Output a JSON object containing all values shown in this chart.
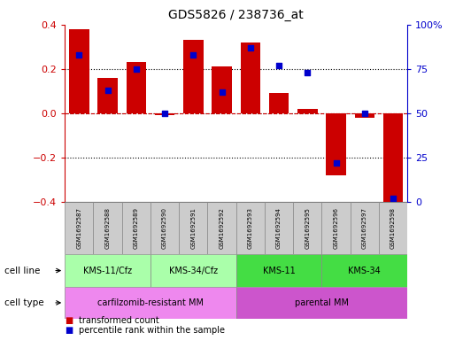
{
  "title": "GDS5826 / 238736_at",
  "samples": [
    "GSM1692587",
    "GSM1692588",
    "GSM1692589",
    "GSM1692590",
    "GSM1692591",
    "GSM1692592",
    "GSM1692593",
    "GSM1692594",
    "GSM1692595",
    "GSM1692596",
    "GSM1692597",
    "GSM1692598"
  ],
  "transformed_count": [
    0.38,
    0.16,
    0.23,
    -0.01,
    0.33,
    0.21,
    0.32,
    0.09,
    0.02,
    -0.28,
    -0.02,
    -0.42
  ],
  "percentile_rank": [
    83,
    63,
    75,
    50,
    83,
    62,
    87,
    77,
    73,
    22,
    50,
    2
  ],
  "bar_color": "#CC0000",
  "dot_color": "#0000CC",
  "ylim_left": [
    -0.4,
    0.4
  ],
  "ylim_right": [
    0,
    100
  ],
  "yticks_left": [
    -0.4,
    -0.2,
    0.0,
    0.2,
    0.4
  ],
  "yticks_right": [
    0,
    25,
    50,
    75,
    100
  ],
  "ytick_labels_right": [
    "0",
    "25",
    "50",
    "75",
    "100%"
  ],
  "hlines": [
    -0.2,
    0.2
  ],
  "cell_line_groups": [
    {
      "label": "KMS-11/Cfz",
      "start": 0,
      "end": 3,
      "color": "#AAFFAA"
    },
    {
      "label": "KMS-34/Cfz",
      "start": 3,
      "end": 6,
      "color": "#AAFFAA"
    },
    {
      "label": "KMS-11",
      "start": 6,
      "end": 9,
      "color": "#44DD44"
    },
    {
      "label": "KMS-34",
      "start": 9,
      "end": 12,
      "color": "#44DD44"
    }
  ],
  "cell_type_groups": [
    {
      "label": "carfilzomib-resistant MM",
      "start": 0,
      "end": 6,
      "color": "#EE88EE"
    },
    {
      "label": "parental MM",
      "start": 6,
      "end": 12,
      "color": "#CC55CC"
    }
  ],
  "cell_line_label": "cell line",
  "cell_type_label": "cell type",
  "legend_items": [
    {
      "label": "transformed count",
      "color": "#CC0000"
    },
    {
      "label": "percentile rank within the sample",
      "color": "#0000CC"
    }
  ],
  "bg_color": "#FFFFFF",
  "bar_width": 0.7,
  "sample_box_color": "#CCCCCC"
}
